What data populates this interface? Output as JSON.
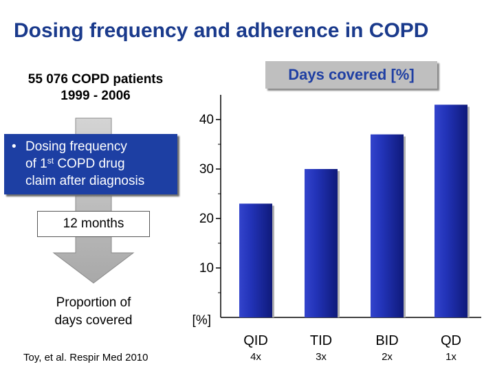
{
  "title": "Dosing frequency and adherence in COPD",
  "patients": {
    "line1": "55 076 COPD patients",
    "line2": "1999 - 2006"
  },
  "days_covered_label": "Days covered [%]",
  "dosing_box": {
    "bullet": "•",
    "line1": "Dosing frequency",
    "line2_prefix": "of 1",
    "line2_sup": "st",
    "line2_suffix": " COPD drug",
    "line3": "claim after diagnosis"
  },
  "months_label": "12 months",
  "proportion": {
    "line1": "Proportion of",
    "line2": "days covered"
  },
  "citation": "Toy, et al. Respir Med 2010",
  "colors": {
    "title": "#1a3a8c",
    "bar": "#1d2fa8",
    "box": "#1d3fa3",
    "arrow": "#c0c0c0"
  },
  "chart_data": {
    "type": "bar",
    "title": "Days covered [%]",
    "ylabel": "[%]",
    "categories": [
      "QID",
      "TID",
      "BID",
      "QD"
    ],
    "sublabels": [
      "4x",
      "3x",
      "2x",
      "1x"
    ],
    "values": [
      23,
      30,
      37,
      43
    ],
    "ylim": [
      0,
      45
    ],
    "yticks": [
      10,
      20,
      30,
      40
    ]
  }
}
